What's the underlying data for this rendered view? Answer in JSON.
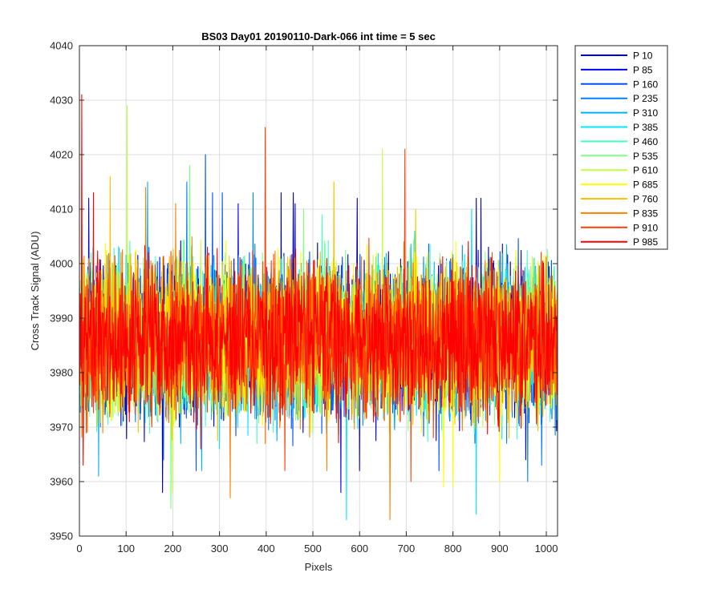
{
  "chart_data": {
    "type": "line",
    "title": "BS03 Day01 20190110-Dark-066 int time = 5 sec",
    "xlabel": "Pixels",
    "ylabel": "Cross Track Signal (ADU)",
    "xlim": [
      0,
      1024
    ],
    "ylim": [
      3950,
      4040
    ],
    "xticks": [
      "0",
      "100",
      "200",
      "300",
      "400",
      "500",
      "600",
      "700",
      "800",
      "900",
      "1000"
    ],
    "yticks": [
      "3950",
      "3960",
      "3970",
      "3980",
      "3990",
      "4000",
      "4010",
      "4020",
      "4030",
      "4040"
    ],
    "grid": true,
    "legend_position": "outside-top-right",
    "noise_baseline": 3986,
    "noise_typical_range": [
      3970,
      4005
    ],
    "series": [
      {
        "name": "P 10",
        "color": "#0000aa",
        "spikes": [
          [
            432,
            4013
          ],
          [
            458,
            4013
          ],
          [
            595,
            4012
          ],
          [
            850,
            4012
          ],
          [
            860,
            4012
          ],
          [
            178,
            3958
          ]
        ]
      },
      {
        "name": "P 85",
        "color": "#0000ee",
        "spikes": [
          [
            20,
            4012
          ],
          [
            340,
            4011
          ],
          [
            462,
            4011
          ],
          [
            560,
            3958
          ],
          [
            600,
            3962
          ],
          [
            956,
            3964
          ]
        ]
      },
      {
        "name": "P 160",
        "color": "#0050ff",
        "spikes": [
          [
            270,
            4020
          ],
          [
            285,
            4013
          ],
          [
            306,
            4013
          ],
          [
            180,
            3964
          ],
          [
            250,
            3962
          ],
          [
            770,
            3962
          ]
        ]
      },
      {
        "name": "P 235",
        "color": "#0080ff",
        "spikes": [
          [
            230,
            4015
          ],
          [
            372,
            4013
          ],
          [
            960,
            3960
          ],
          [
            990,
            3963
          ]
        ]
      },
      {
        "name": "P 310",
        "color": "#00b0ff",
        "spikes": [
          [
            146,
            4015
          ],
          [
            398,
            4011
          ],
          [
            41,
            3961
          ],
          [
            262,
            3962
          ]
        ]
      },
      {
        "name": "P 385",
        "color": "#00e8ff",
        "spikes": [
          [
            840,
            4010
          ],
          [
            572,
            3953
          ],
          [
            850,
            3954
          ],
          [
            300,
            3966
          ]
        ]
      },
      {
        "name": "P 460",
        "color": "#40ffc0",
        "spikes": [
          [
            236,
            4018
          ],
          [
            520,
            4009
          ],
          [
            380,
            3967
          ]
        ]
      },
      {
        "name": "P 535",
        "color": "#80ff80",
        "spikes": [
          [
            236,
            4018
          ],
          [
            480,
            4010
          ],
          [
            196,
            3955
          ]
        ]
      },
      {
        "name": "P 610",
        "color": "#c0ff40",
        "spikes": [
          [
            102,
            4029
          ],
          [
            649,
            4021
          ],
          [
            200,
            3958
          ],
          [
            780,
            3962
          ]
        ]
      },
      {
        "name": "P 685",
        "color": "#ffff00",
        "spikes": [
          [
            545,
            4015
          ],
          [
            800,
            3959
          ],
          [
            900,
            3960
          ],
          [
            780,
            3959
          ]
        ]
      },
      {
        "name": "P 760",
        "color": "#ffc000",
        "spikes": [
          [
            66,
            4016
          ],
          [
            545,
            4015
          ],
          [
            720,
            4010
          ],
          [
            920,
            3968
          ]
        ]
      },
      {
        "name": "P 835",
        "color": "#ff8000",
        "spikes": [
          [
            142,
            4014
          ],
          [
            206,
            4011
          ],
          [
            323,
            3957
          ],
          [
            665,
            3953
          ],
          [
            530,
            3962
          ]
        ]
      },
      {
        "name": "P 910",
        "color": "#ff4000",
        "spikes": [
          [
            398,
            4025
          ],
          [
            697,
            4021
          ],
          [
            710,
            3960
          ],
          [
            440,
            3962
          ]
        ]
      },
      {
        "name": "P 985",
        "color": "#ff0000",
        "spikes": [
          [
            5,
            4031
          ],
          [
            30,
            4013
          ],
          [
            8,
            3963
          ],
          [
            260,
            3966
          ]
        ]
      }
    ]
  }
}
